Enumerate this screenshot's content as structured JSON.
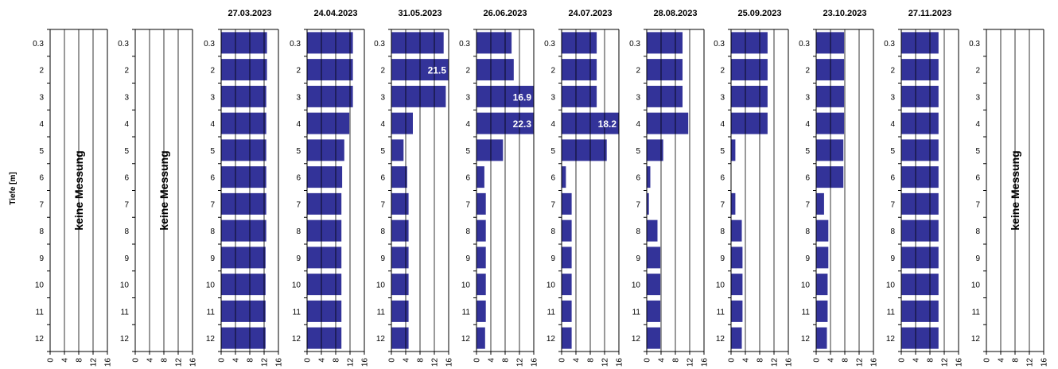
{
  "ylabel": "Tiefe [m]",
  "depths": [
    "0.3",
    "2",
    "3",
    "4",
    "5",
    "6",
    "7",
    "8",
    "9",
    "10",
    "11",
    "12"
  ],
  "xticks": [
    "0",
    "4",
    "8",
    "12",
    "16"
  ],
  "colors": {
    "bar": "#333399",
    "label_text": "#ffffff",
    "axis": "#000000"
  },
  "chart_data": [
    {
      "type": "bar",
      "orientation": "horizontal",
      "title": "",
      "xlim": [
        0,
        16
      ],
      "no_measurement": "keine Messung",
      "values": []
    },
    {
      "type": "bar",
      "orientation": "horizontal",
      "title": "",
      "xlim": [
        0,
        16
      ],
      "no_measurement": "keine Messung",
      "values": []
    },
    {
      "type": "bar",
      "orientation": "horizontal",
      "title": "27.03.2023",
      "xlim": [
        0,
        16
      ],
      "values": [
        12.8,
        12.8,
        12.6,
        12.6,
        12.6,
        12.6,
        12.6,
        12.6,
        12.4,
        12.4,
        12.4,
        12.4
      ]
    },
    {
      "type": "bar",
      "orientation": "horizontal",
      "title": "24.04.2023",
      "xlim": [
        0,
        16
      ],
      "values": [
        12.8,
        12.8,
        12.8,
        11.8,
        10.4,
        9.8,
        9.6,
        9.6,
        9.6,
        9.6,
        9.6,
        9.6
      ]
    },
    {
      "type": "bar",
      "orientation": "horizontal",
      "title": "31.05.2023",
      "xlim": [
        0,
        16
      ],
      "values": [
        14.6,
        21.5,
        15.2,
        6.0,
        3.4,
        4.4,
        4.8,
        4.8,
        4.8,
        4.8,
        4.8,
        4.8
      ],
      "data_labels": [
        "",
        "21.5",
        "",
        "",
        "",
        "",
        "",
        "",
        "",
        "",
        "",
        ""
      ]
    },
    {
      "type": "bar",
      "orientation": "horizontal",
      "title": "26.06.2023",
      "xlim": [
        0,
        16
      ],
      "values": [
        9.8,
        10.4,
        16.9,
        22.3,
        7.4,
        2.2,
        2.6,
        2.6,
        2.6,
        2.6,
        2.6,
        2.4
      ],
      "data_labels": [
        "",
        "",
        "16.9",
        "22.3",
        "",
        "",
        "",
        "",
        "",
        "",
        "",
        ""
      ]
    },
    {
      "type": "bar",
      "orientation": "horizontal",
      "title": "24.07.2023",
      "xlim": [
        0,
        16
      ],
      "values": [
        9.8,
        9.8,
        9.8,
        18.2,
        12.6,
        1.2,
        2.8,
        2.8,
        2.8,
        2.8,
        2.8,
        2.8
      ],
      "data_labels": [
        "",
        "",
        "",
        "18.2",
        "",
        "",
        "",
        "",
        "",
        "",
        "",
        ""
      ]
    },
    {
      "type": "bar",
      "orientation": "horizontal",
      "title": "28.08.2023",
      "xlim": [
        0,
        16
      ],
      "values": [
        10.0,
        10.0,
        10.0,
        11.6,
        4.6,
        1.0,
        0.6,
        3.0,
        3.8,
        3.8,
        3.8,
        3.8
      ]
    },
    {
      "type": "bar",
      "orientation": "horizontal",
      "title": "25.09.2023",
      "xlim": [
        0,
        16
      ],
      "values": [
        10.2,
        10.2,
        10.2,
        10.2,
        1.2,
        0,
        1.2,
        3.0,
        3.2,
        3.2,
        3.2,
        3.0
      ]
    },
    {
      "type": "bar",
      "orientation": "horizontal",
      "title": "23.10.2023",
      "xlim": [
        0,
        16
      ],
      "values": [
        7.8,
        7.8,
        7.8,
        7.8,
        7.6,
        7.6,
        2.2,
        3.4,
        3.4,
        3.2,
        3.2,
        3.0
      ]
    },
    {
      "type": "bar",
      "orientation": "horizontal",
      "title": "27.11.2023",
      "xlim": [
        0,
        16
      ],
      "values": [
        10.4,
        10.4,
        10.4,
        10.4,
        10.4,
        10.4,
        10.4,
        10.4,
        10.4,
        10.4,
        10.4,
        10.4
      ]
    },
    {
      "type": "bar",
      "orientation": "horizontal",
      "title": "",
      "xlim": [
        0,
        16
      ],
      "no_measurement": "keine Messung",
      "values": []
    }
  ]
}
